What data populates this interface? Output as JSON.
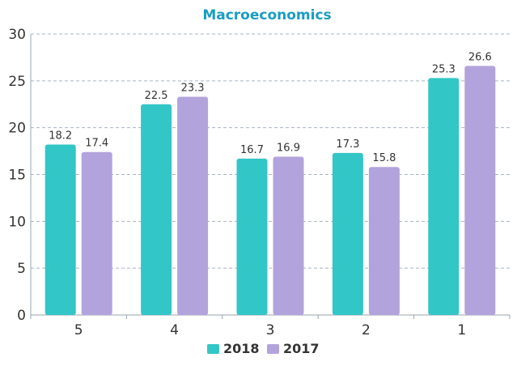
{
  "chart_data": {
    "type": "bar",
    "title": "Macroeconomics",
    "xlabel": "",
    "ylabel": "",
    "categories": [
      "5",
      "4",
      "3",
      "2",
      "1"
    ],
    "series": [
      {
        "name": "2018",
        "values": [
          18.2,
          22.5,
          16.7,
          17.3,
          25.3
        ],
        "color": "#33c6c6"
      },
      {
        "name": "2017",
        "values": [
          17.4,
          23.3,
          16.9,
          15.8,
          26.6
        ],
        "color": "#b3a3dc"
      }
    ],
    "ylim": [
      0,
      30
    ],
    "yticks": [
      0,
      5,
      10,
      15,
      20,
      25,
      30
    ],
    "grid": true,
    "legend": "bottom-center",
    "title_color": "#1a9dc2"
  }
}
